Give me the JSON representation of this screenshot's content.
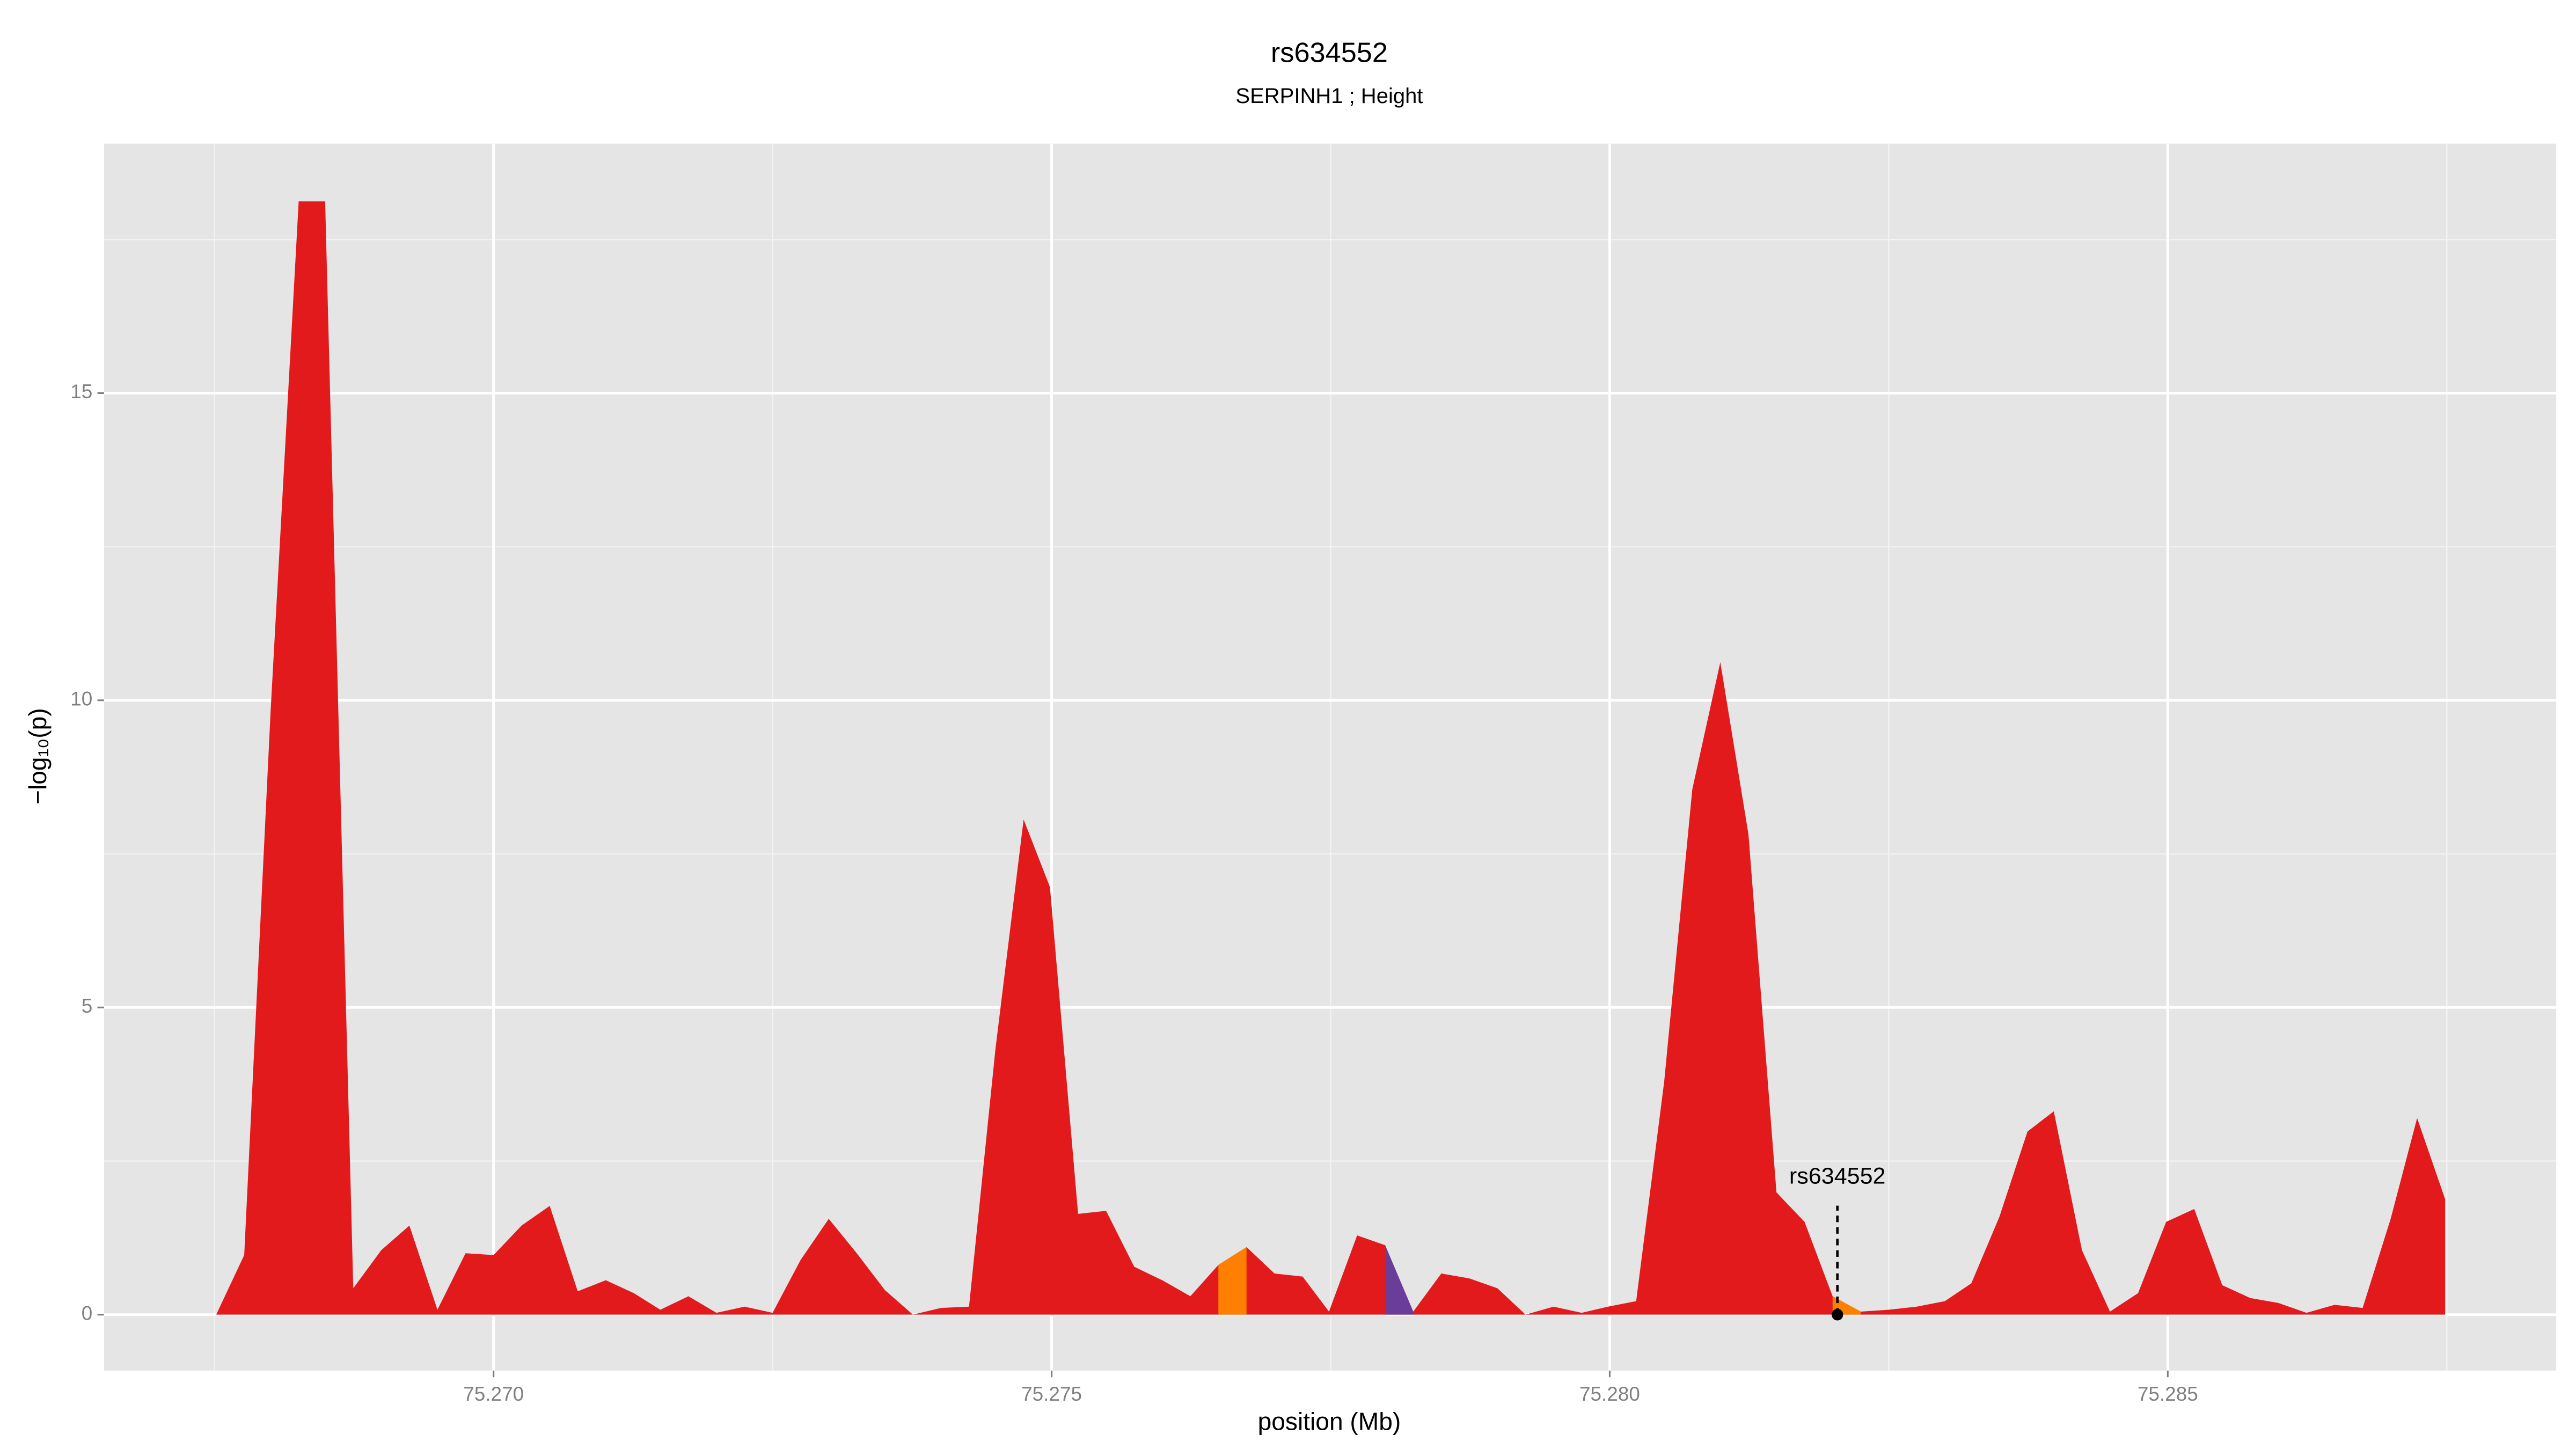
{
  "chart_data": {
    "type": "area",
    "title": "rs634552",
    "subtitle": "SERPINH1 ; Height",
    "xlabel": "position (Mb)",
    "ylabel": "−log₁₀(p)",
    "x": [
      75.267515,
      75.267766,
      75.268003,
      75.268254,
      75.268491,
      75.268743,
      75.268994,
      75.269246,
      75.269497,
      75.269749,
      75.27,
      75.270251,
      75.270503,
      75.270754,
      75.271006,
      75.271257,
      75.271494,
      75.271746,
      75.271997,
      75.272249,
      75.2725,
      75.272751,
      75.273003,
      75.273254,
      75.273506,
      75.273757,
      75.274009,
      75.27426,
      75.274497,
      75.274749,
      75.274985,
      75.275237,
      75.275488,
      75.27574,
      75.275991,
      75.276243,
      75.276494,
      75.276746,
      75.276997,
      75.277249,
      75.277485,
      75.277737,
      75.277988,
      75.27824,
      75.278491,
      75.278743,
      75.278994,
      75.279246,
      75.279497,
      75.279749,
      75.279985,
      75.280237,
      75.280488,
      75.28074,
      75.280991,
      75.281243,
      75.281494,
      75.281746,
      75.281997,
      75.282249,
      75.2825,
      75.282751,
      75.283003,
      75.28324,
      75.283491,
      75.283743,
      75.283979,
      75.284231,
      75.284482,
      75.284734,
      75.284985,
      75.285237,
      75.285488,
      75.28574,
      75.285991,
      75.286243,
      75.286494,
      75.286746,
      75.286997,
      75.287234,
      75.287485
    ],
    "series": [
      {
        "color": "#e31a1c",
        "values": [
          0,
          0.97,
          9.84,
          18.12,
          18.12,
          0.43,
          1.05,
          1.45,
          0.08,
          1.0,
          0.97,
          1.45,
          1.77,
          0.38,
          0.56,
          0.35,
          0.08,
          0.3,
          0.03,
          0.13,
          0.03,
          0.89,
          1.56,
          1.0,
          0.4,
          0,
          0.11,
          0.13,
          4.33,
          8.06,
          6.96,
          1.64,
          1.69,
          0.78,
          0.56,
          0.3,
          0.81,
          1.1,
          0.67,
          0.62,
          0.05,
          1.29,
          1.13,
          0.05,
          0.67,
          0.59,
          0.43,
          0,
          0.13,
          0.03,
          0.13,
          0.22,
          3.79,
          8.55,
          10.62,
          7.82,
          1.99,
          1.51,
          0.3,
          0.05,
          0.08,
          0.13,
          0.22,
          0.51,
          1.59,
          2.98,
          3.31,
          1.05,
          0.05,
          0.35,
          1.51,
          1.72,
          0.48,
          0.27,
          0.19,
          0.03,
          0.16,
          0.11,
          1.56,
          3.2,
          1.88
        ]
      },
      {
        "color": "#ff7f00",
        "values": [
          null,
          null,
          null,
          null,
          null,
          null,
          null,
          null,
          null,
          null,
          null,
          null,
          null,
          null,
          null,
          null,
          null,
          null,
          null,
          null,
          null,
          null,
          null,
          null,
          null,
          null,
          null,
          null,
          null,
          null,
          null,
          null,
          null,
          null,
          null,
          null,
          0.81,
          1.1,
          null,
          null,
          null,
          null,
          null,
          null,
          null,
          null,
          null,
          null,
          null,
          null,
          null,
          null,
          null,
          null,
          null,
          null,
          null,
          null,
          0.3,
          0.05,
          null,
          null,
          null,
          null,
          null,
          null,
          null,
          null,
          null,
          null,
          null,
          null,
          null,
          null,
          null,
          null,
          null,
          null,
          null,
          null,
          null
        ]
      },
      {
        "color": "#6a3d9a",
        "values": [
          null,
          null,
          null,
          null,
          null,
          null,
          null,
          null,
          null,
          null,
          null,
          null,
          null,
          null,
          null,
          null,
          null,
          null,
          null,
          null,
          null,
          null,
          null,
          null,
          null,
          null,
          null,
          null,
          null,
          null,
          null,
          null,
          null,
          null,
          null,
          null,
          null,
          null,
          null,
          null,
          null,
          null,
          1.13,
          0.05,
          null,
          null,
          null,
          null,
          null,
          null,
          null,
          null,
          null,
          null,
          null,
          null,
          null,
          null,
          null,
          null,
          null,
          null,
          null,
          null,
          null,
          null,
          null,
          null,
          null,
          null,
          null,
          null,
          null,
          null,
          null,
          null,
          null,
          null,
          null,
          null,
          null
        ]
      }
    ],
    "annotations": [
      {
        "text": "rs634552",
        "x": 75.28204,
        "y": 0
      }
    ],
    "xlim": [
      75.26651,
      75.28848
    ],
    "ylim": [
      -0.91,
      19.06
    ],
    "xticks": [
      {
        "value": 75.27,
        "label": "75.270"
      },
      {
        "value": 75.275,
        "label": "75.275"
      },
      {
        "value": 75.28,
        "label": "75.280"
      },
      {
        "value": 75.285,
        "label": "75.285"
      }
    ],
    "yticks": [
      0,
      5,
      10,
      15
    ],
    "xminorticks": [
      75.2675,
      75.2725,
      75.2775,
      75.2825,
      75.2875
    ],
    "yminorticks": [
      2.5,
      7.5,
      12.5,
      17.5
    ],
    "grid": true
  }
}
